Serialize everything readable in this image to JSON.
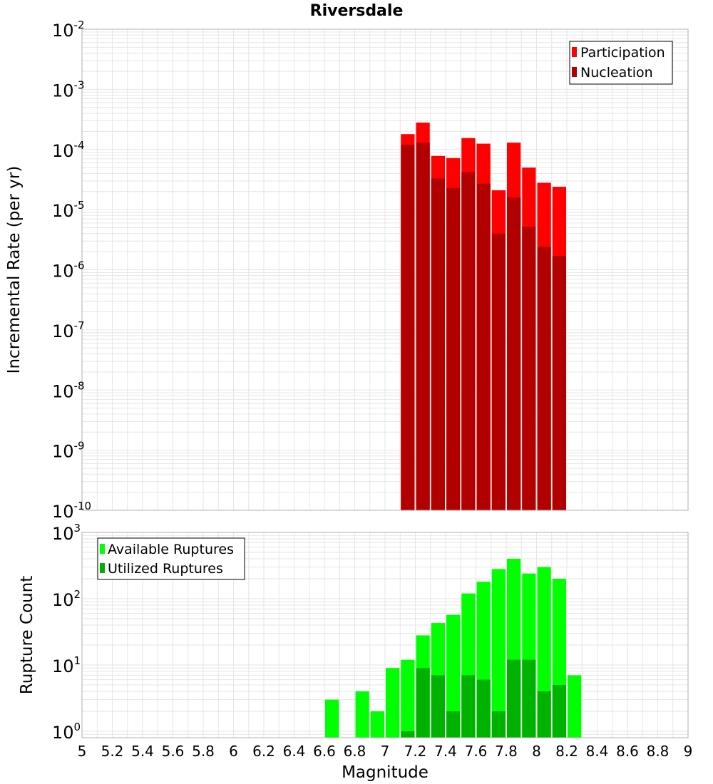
{
  "title": "Riversdale",
  "xlabel": "Magnitude",
  "x_ticks": [
    "5",
    "5.2",
    "5.4",
    "5.6",
    "5.8",
    "6",
    "6.2",
    "6.4",
    "6.6",
    "6.8",
    "7",
    "7.2",
    "7.4",
    "7.6",
    "7.8",
    "8",
    "8.2",
    "8.4",
    "8.6",
    "8.8",
    "9"
  ],
  "colors": {
    "participation": "#ff0000",
    "nucleation": "#b20000",
    "available": "#00ff00",
    "utilized": "#00b200",
    "grid": "#e6e6e6",
    "frame": "#b0b0b0"
  },
  "chart_data": [
    {
      "type": "bar",
      "title": "Riversdale",
      "xlabel": "Magnitude",
      "ylabel": "Incremental Rate (per yr)",
      "y_scale": "log",
      "xlim": [
        5,
        9
      ],
      "ylim": [
        1e-10,
        0.01
      ],
      "y_ticks": [
        {
          "base": "10",
          "exp": "-10"
        },
        {
          "base": "10",
          "exp": "-9"
        },
        {
          "base": "10",
          "exp": "-8"
        },
        {
          "base": "10",
          "exp": "-7"
        },
        {
          "base": "10",
          "exp": "-6"
        },
        {
          "base": "10",
          "exp": "-5"
        },
        {
          "base": "10",
          "exp": "-4"
        },
        {
          "base": "10",
          "exp": "-3"
        },
        {
          "base": "10",
          "exp": "-2"
        }
      ],
      "legend_placement": "top-right",
      "x": [
        7.15,
        7.25,
        7.35,
        7.45,
        7.55,
        7.65,
        7.75,
        7.85,
        7.95,
        8.05,
        8.15
      ],
      "series": [
        {
          "name": "Participation",
          "values": [
            0.00018,
            0.00028,
            7.8e-05,
            7.2e-05,
            0.000155,
            0.000125,
            2.1e-05,
            0.00013,
            5e-05,
            2.8e-05,
            2.4e-05
          ]
        },
        {
          "name": "Nucleation",
          "values": [
            0.00012,
            0.00013,
            3.3e-05,
            2.3e-05,
            4.2e-05,
            2.7e-05,
            4e-06,
            1.6e-05,
            5.2e-06,
            2.4e-06,
            1.7e-06
          ]
        }
      ]
    },
    {
      "type": "bar",
      "xlabel": "Magnitude",
      "ylabel": "Rupture Count",
      "y_scale": "log",
      "xlim": [
        5,
        9
      ],
      "ylim": [
        0.8,
        1000
      ],
      "y_ticks": [
        {
          "base": "10",
          "exp": "0"
        },
        {
          "base": "10",
          "exp": "1"
        },
        {
          "base": "10",
          "exp": "2"
        },
        {
          "base": "10",
          "exp": "3"
        }
      ],
      "legend_placement": "top-left",
      "series": [
        {
          "name": "Available Ruptures",
          "x": [
            6.65,
            6.85,
            6.95,
            7.05,
            7.15,
            7.25,
            7.35,
            7.45,
            7.55,
            7.65,
            7.75,
            7.85,
            7.95,
            8.05,
            8.15,
            8.25
          ],
          "values": [
            3,
            4,
            2,
            9,
            12,
            28,
            43,
            57,
            120,
            180,
            280,
            400,
            240,
            300,
            200,
            7
          ]
        },
        {
          "name": "Utilized Ruptures",
          "x": [
            7.15,
            7.25,
            7.35,
            7.45,
            7.55,
            7.65,
            7.75,
            7.85,
            7.95,
            8.05,
            8.15
          ],
          "values": [
            1,
            9,
            7,
            2,
            7,
            6,
            2,
            12,
            12,
            4,
            5
          ]
        }
      ]
    }
  ]
}
